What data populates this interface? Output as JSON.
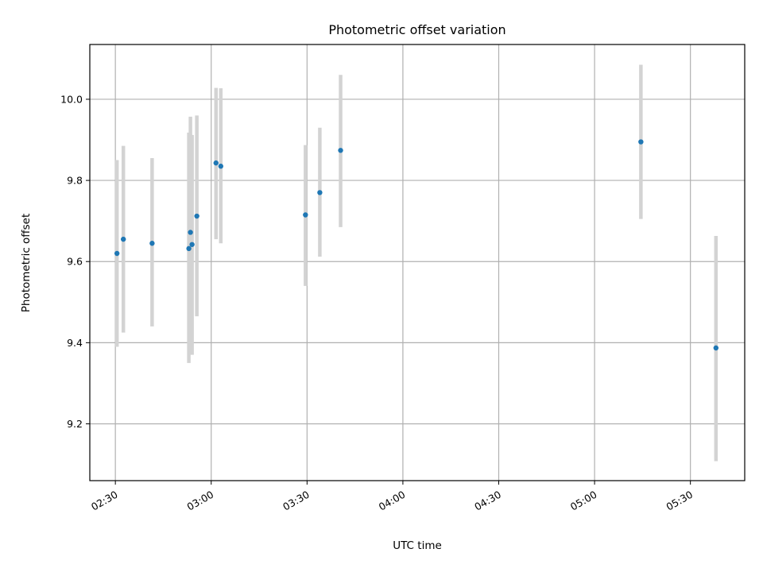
{
  "chart_data": {
    "type": "scatter",
    "title": "Photometric offset variation",
    "xlabel": "UTC time",
    "ylabel": "Photometric offset",
    "grid": true,
    "xlim": [
      "02:22",
      "05:47"
    ],
    "ylim": [
      9.06,
      10.135
    ],
    "x_ticks": [
      "02:30",
      "03:00",
      "03:30",
      "04:00",
      "04:30",
      "05:00",
      "05:30"
    ],
    "y_ticks": [
      9.2,
      9.4,
      9.6,
      9.8,
      10.0
    ],
    "colors": {
      "point": "#1f77b4",
      "error_bar": "#d3d3d3"
    },
    "points": [
      {
        "time": "02:30:30",
        "y": 9.62,
        "y_low": 9.39,
        "y_high": 9.85
      },
      {
        "time": "02:32:30",
        "y": 9.655,
        "y_low": 9.425,
        "y_high": 9.885
      },
      {
        "time": "02:41:30",
        "y": 9.645,
        "y_low": 9.44,
        "y_high": 9.855
      },
      {
        "time": "02:53:00",
        "y": 9.632,
        "y_low": 9.35,
        "y_high": 9.918
      },
      {
        "time": "02:53:30",
        "y": 9.672,
        "y_low": 9.43,
        "y_high": 9.957
      },
      {
        "time": "02:54:00",
        "y": 9.642,
        "y_low": 9.37,
        "y_high": 9.912
      },
      {
        "time": "02:55:30",
        "y": 9.712,
        "y_low": 9.465,
        "y_high": 9.96
      },
      {
        "time": "03:01:30",
        "y": 9.843,
        "y_low": 9.655,
        "y_high": 10.028
      },
      {
        "time": "03:03:00",
        "y": 9.835,
        "y_low": 9.645,
        "y_high": 10.027
      },
      {
        "time": "03:29:30",
        "y": 9.715,
        "y_low": 9.54,
        "y_high": 9.887
      },
      {
        "time": "03:34:00",
        "y": 9.77,
        "y_low": 9.612,
        "y_high": 9.93
      },
      {
        "time": "03:40:30",
        "y": 9.874,
        "y_low": 9.685,
        "y_high": 10.06
      },
      {
        "time": "05:14:30",
        "y": 9.895,
        "y_low": 9.705,
        "y_high": 10.085
      },
      {
        "time": "05:38:00",
        "y": 9.387,
        "y_low": 9.108,
        "y_high": 9.663
      }
    ]
  }
}
